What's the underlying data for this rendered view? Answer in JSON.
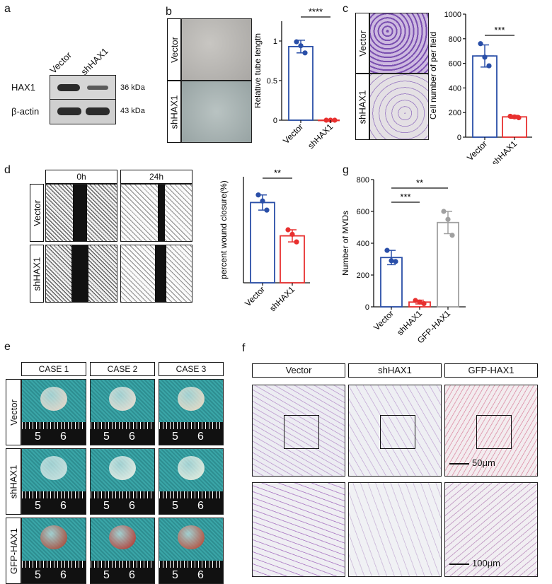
{
  "panels": {
    "a": "a",
    "b": "b",
    "c": "c",
    "d": "d",
    "e": "e",
    "f": "f",
    "g": "g"
  },
  "a": {
    "col1": "Vector",
    "col2": "shHAX1",
    "row1": "HAX1",
    "row2": "β-actin",
    "kda1": "36 kDa",
    "kda2": "43 kDa"
  },
  "b": {
    "row1": "Vector",
    "row2": "shHAX1"
  },
  "c": {
    "row1": "Vector",
    "row2": "shHAX1"
  },
  "d": {
    "col1": "0h",
    "col2": "24h",
    "row1": "Vector",
    "row2": "shHAX1"
  },
  "e": {
    "cols": [
      "CASE 1",
      "CASE 2",
      "CASE 3"
    ],
    "rows": [
      "Vector",
      "shHAX1",
      "GFP-HAX1"
    ],
    "ruler": [
      "5",
      "6"
    ]
  },
  "f": {
    "cols": [
      "Vector",
      "shHAX1",
      "GFP-HAX1"
    ],
    "scale1": "50μm",
    "scale2": "100μm"
  },
  "colors": {
    "vector": "#2a4fa8",
    "shHAX1": "#e8302f",
    "gfp": "#a0a0a0"
  },
  "chart_data": [
    {
      "id": "b",
      "type": "bar",
      "categories": [
        "Vector",
        "shHAX1"
      ],
      "values": [
        0.93,
        0.0
      ],
      "points": [
        [
          0.99,
          0.94,
          0.85
        ],
        [
          0.0,
          0.0,
          0.0
        ]
      ],
      "errors": [
        0.08,
        0.0
      ],
      "ylabel": "Relative tube length",
      "ylim": [
        0,
        1.25
      ],
      "yticks": [
        0.0,
        0.5,
        1.0
      ],
      "significance": [
        {
          "from": 0,
          "to": 1,
          "label": "****"
        }
      ]
    },
    {
      "id": "c",
      "type": "bar",
      "categories": [
        "Vector",
        "shHAX1"
      ],
      "values": [
        660,
        165
      ],
      "points": [
        [
          760,
          650,
          580
        ],
        [
          170,
          165,
          158
        ]
      ],
      "errors": [
        90,
        12
      ],
      "ylabel": "Cell number of per field",
      "ylim": [
        0,
        1000
      ],
      "yticks": [
        0,
        200,
        400,
        600,
        800,
        1000
      ],
      "significance": [
        {
          "from": 0,
          "to": 1,
          "label": "***"
        }
      ]
    },
    {
      "id": "d",
      "type": "bar",
      "categories": [
        "Vector",
        "shHAX1"
      ],
      "values": [
        53,
        31
      ],
      "points": [
        [
          58,
          54,
          48
        ],
        [
          35,
          32,
          27
        ]
      ],
      "errors": [
        5,
        4
      ],
      "ylabel": "percent wound closure(%)",
      "ylim": [
        0,
        70
      ],
      "yticks": [],
      "significance": [
        {
          "from": 0,
          "to": 1,
          "label": "**"
        }
      ]
    },
    {
      "id": "g",
      "type": "bar",
      "categories": [
        "Vector",
        "shHAX1",
        "GFP-HAX1"
      ],
      "values": [
        310,
        30,
        530
      ],
      "points": [
        [
          355,
          290,
          285
        ],
        [
          40,
          30,
          20
        ],
        [
          600,
          550,
          450
        ]
      ],
      "errors": [
        45,
        12,
        70
      ],
      "ylabel": "Number of MVDs",
      "ylim": [
        0,
        800
      ],
      "yticks": [
        0,
        200,
        400,
        600,
        800
      ],
      "significance": [
        {
          "from": 0,
          "to": 1,
          "label": "***"
        },
        {
          "from": 0,
          "to": 2,
          "label": "**"
        }
      ]
    }
  ]
}
